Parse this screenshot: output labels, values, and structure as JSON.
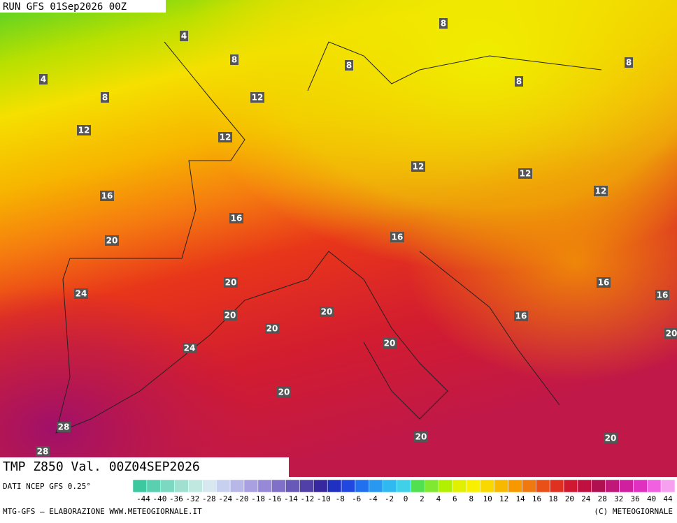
{
  "header": {
    "run": "RUN GFS 01Sep2026 00Z"
  },
  "contour_labels": [
    "4",
    "4",
    "8",
    "8",
    "8",
    "8",
    "8",
    "8",
    "12",
    "12",
    "12",
    "12",
    "12",
    "12",
    "16",
    "16",
    "16",
    "16",
    "16",
    "16",
    "20",
    "20",
    "20",
    "20",
    "20",
    "20",
    "20",
    "20",
    "20",
    "20",
    "24",
    "24",
    "28",
    "28"
  ],
  "panel": {
    "title": "TMP Z850 Val. 00Z04SEP2026",
    "source": "DATI NCEP GFS 0.25°",
    "credit": "MTG-GFS — ELABORAZIONE WWW.METEOGIORNALE.IT",
    "copyright": "(C) METEOGIORNALE"
  },
  "colorbar": {
    "labels": [
      "-44",
      "-40",
      "-36",
      "-32",
      "-28",
      "-24",
      "-20",
      "-18",
      "-16",
      "-14",
      "-12",
      "-10",
      "-8",
      "-6",
      "-4",
      "-2",
      "0",
      "2",
      "4",
      "6",
      "8",
      "10",
      "12",
      "14",
      "16",
      "18",
      "20",
      "24",
      "28",
      "32",
      "36",
      "40",
      "44"
    ]
  }
}
